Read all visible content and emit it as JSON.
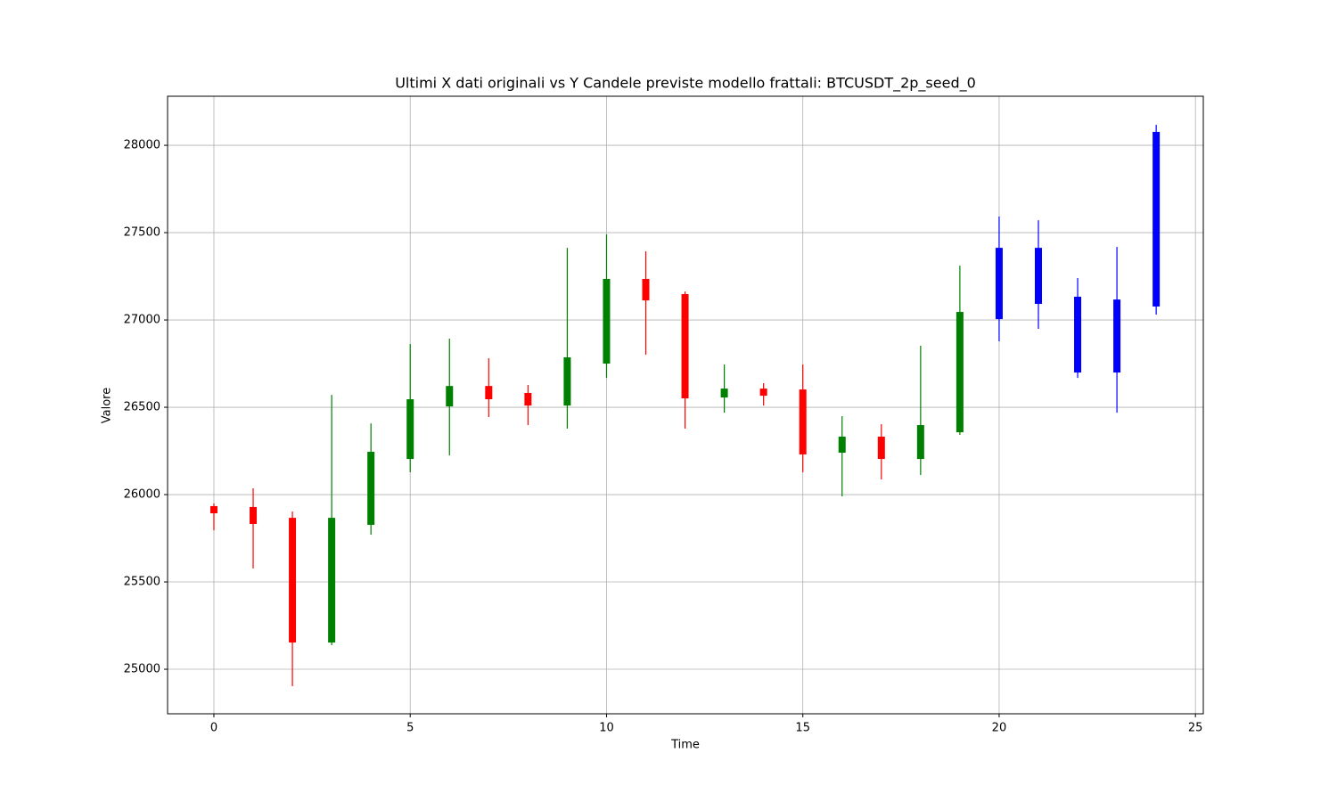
{
  "chart_data": {
    "type": "candlestick",
    "title": "Ultimi X dati originali vs Y Candele previste modello frattali: BTCUSDT_2p_seed_0",
    "xlabel": "Time",
    "ylabel": "Valore",
    "x": [
      0,
      1,
      2,
      3,
      4,
      5,
      6,
      7,
      8,
      9,
      10,
      11,
      12,
      13,
      14,
      15,
      16,
      17,
      18,
      19,
      20,
      21,
      22,
      23,
      24
    ],
    "open": [
      25934,
      25929,
      25867,
      25153,
      25827,
      26204,
      26505,
      26622,
      26582,
      26510,
      26750,
      27235,
      27148,
      26556,
      26607,
      26602,
      26240,
      26332,
      26204,
      26357,
      27005,
      27413,
      27133,
      26699,
      27077
    ],
    "high": [
      25949,
      26036,
      25903,
      26571,
      26408,
      26862,
      26893,
      26781,
      26628,
      27413,
      27490,
      27393,
      27163,
      26745,
      26638,
      26745,
      26449,
      26403,
      26852,
      27311,
      27592,
      27571,
      27240,
      27418,
      28117
    ],
    "low": [
      25796,
      25577,
      24903,
      25138,
      25770,
      26128,
      26224,
      26444,
      26398,
      26378,
      26668,
      26801,
      26378,
      26469,
      26510,
      26128,
      25990,
      26087,
      26112,
      26342,
      26878,
      26949,
      26668,
      26469,
      27031
    ],
    "close": [
      25893,
      25832,
      25153,
      25867,
      26245,
      26546,
      26622,
      26546,
      26510,
      26786,
      27235,
      27112,
      26551,
      26607,
      26566,
      26230,
      26332,
      26204,
      26398,
      27046,
      27413,
      27092,
      26699,
      27117,
      28077
    ],
    "colors": [
      "#ff0000",
      "#ff0000",
      "#ff0000",
      "#008000",
      "#008000",
      "#008000",
      "#008000",
      "#ff0000",
      "#ff0000",
      "#008000",
      "#008000",
      "#ff0000",
      "#ff0000",
      "#008000",
      "#ff0000",
      "#ff0000",
      "#008000",
      "#ff0000",
      "#008000",
      "#008000",
      "#0000ff",
      "#0000ff",
      "#0000ff",
      "#0000ff",
      "#0000ff"
    ],
    "xlim": [
      -1.18,
      25.2
    ],
    "ylim": [
      24745,
      28281
    ],
    "xticks": [
      0,
      5,
      10,
      15,
      20,
      25
    ],
    "yticks": [
      25000,
      25500,
      26000,
      26500,
      27000,
      27500,
      28000
    ],
    "grid": true
  }
}
